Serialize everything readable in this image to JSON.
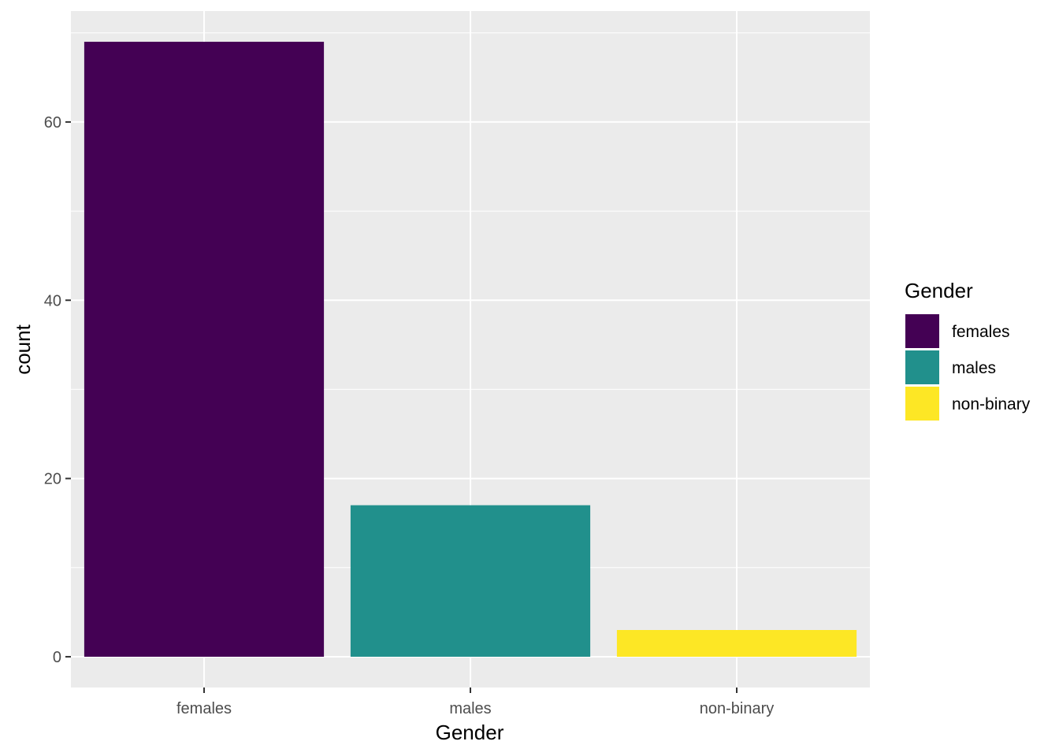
{
  "chart_data": {
    "type": "bar",
    "title": "",
    "xlabel": "Gender",
    "ylabel": "count",
    "categories": [
      "females",
      "males",
      "non-binary"
    ],
    "values": [
      69,
      17,
      3
    ],
    "colors": [
      "#440154",
      "#21908C",
      "#FDE725"
    ],
    "ylim": [
      -3.45,
      72.45
    ],
    "yticks": [
      0,
      20,
      40,
      60
    ],
    "yticks_minor": [
      10,
      30,
      50,
      70
    ],
    "grid": true,
    "panel_background": "#EBEBEB",
    "legend": {
      "title": "Gender",
      "placement": "right",
      "entries": [
        "females",
        "males",
        "non-binary"
      ]
    }
  }
}
